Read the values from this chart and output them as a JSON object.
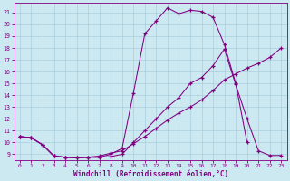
{
  "xlabel": "Windchill (Refroidissement éolien,°C)",
  "bg_color": "#cce8f0",
  "line_color": "#800080",
  "grid_color": "#a0c8d8",
  "xlim": [
    -0.5,
    23.5
  ],
  "ylim": [
    8.5,
    21.8
  ],
  "yticks": [
    9,
    10,
    11,
    12,
    13,
    14,
    15,
    16,
    17,
    18,
    19,
    20,
    21
  ],
  "xticks": [
    0,
    1,
    2,
    3,
    4,
    5,
    6,
    7,
    8,
    9,
    10,
    11,
    12,
    13,
    14,
    15,
    16,
    17,
    18,
    19,
    20,
    21,
    22,
    23
  ],
  "curve1_x": [
    0,
    1,
    2,
    3,
    4,
    5,
    6,
    7,
    8,
    9,
    10,
    11,
    12,
    13,
    14,
    15,
    16,
    17,
    18,
    19,
    20
  ],
  "curve1_y": [
    10.5,
    10.4,
    9.8,
    8.85,
    8.75,
    8.7,
    8.75,
    8.75,
    9.0,
    9.5,
    14.2,
    19.2,
    20.3,
    21.4,
    20.9,
    21.2,
    21.1,
    20.6,
    18.3,
    15.0,
    10.0
  ],
  "curve2_x": [
    0,
    1,
    2,
    3,
    4,
    5,
    6,
    7,
    8,
    9,
    10,
    11,
    12,
    13,
    14,
    15,
    16,
    17,
    18,
    19,
    20,
    21,
    22,
    23
  ],
  "curve2_y": [
    10.5,
    10.4,
    9.8,
    8.85,
    8.75,
    8.7,
    8.75,
    8.85,
    9.1,
    9.3,
    9.9,
    10.5,
    11.2,
    11.9,
    12.5,
    13.0,
    13.6,
    14.4,
    15.3,
    15.8,
    16.3,
    16.7,
    17.2,
    18.0
  ],
  "curve3_x": [
    0,
    1,
    2,
    3,
    4,
    5,
    6,
    7,
    8,
    9,
    10,
    11,
    12,
    13,
    14,
    15,
    16,
    17,
    18,
    19,
    20,
    21,
    22,
    23
  ],
  "curve3_y": [
    10.5,
    10.4,
    9.8,
    8.85,
    8.75,
    8.7,
    8.75,
    8.75,
    8.8,
    9.0,
    10.0,
    11.0,
    12.0,
    13.0,
    13.8,
    15.0,
    15.5,
    16.5,
    17.9,
    14.9,
    12.0,
    9.3,
    8.9,
    8.9
  ]
}
